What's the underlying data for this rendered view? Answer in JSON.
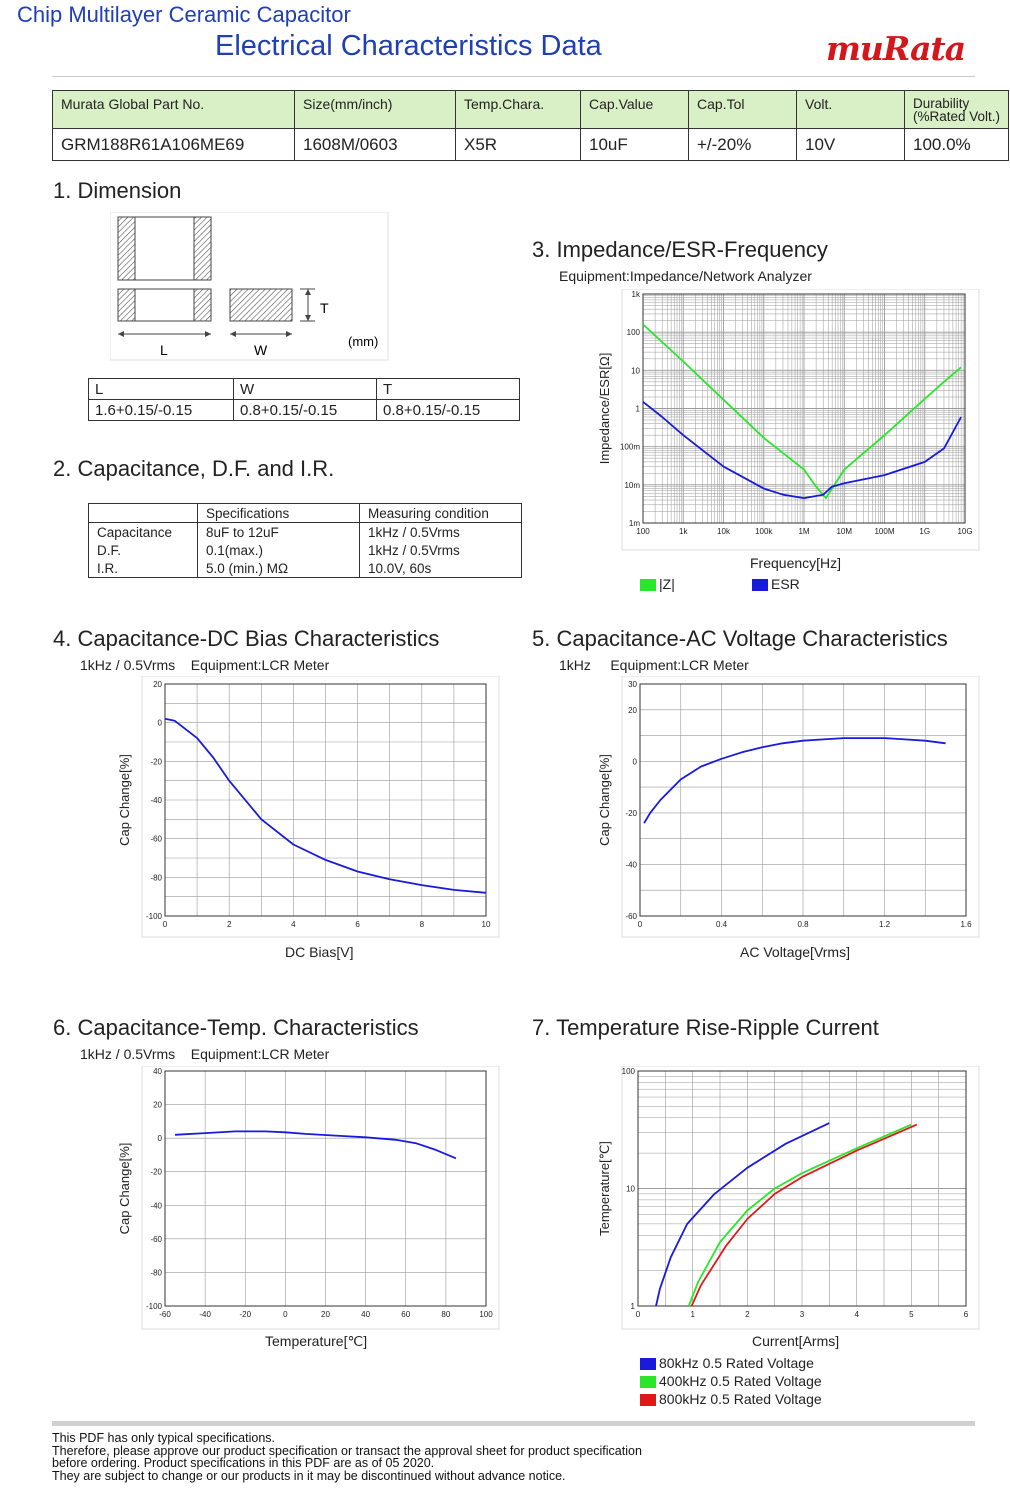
{
  "header": {
    "subtitle": "Chip Multilayer Ceramic Capacitor",
    "title": "Electrical Characteristics Data",
    "logo": "muRata"
  },
  "part_table": {
    "headers": [
      "Murata Global Part No.",
      "Size(mm/inch)",
      "Temp.Chara.",
      "Cap.Value",
      "Cap.Tol",
      "Volt.",
      "Durability\n(%Rated Volt.)"
    ],
    "values": [
      "GRM188R61A106ME69",
      "1608M/0603",
      "X5R",
      "10uF",
      "+/-20%",
      "10V",
      "100.0%"
    ]
  },
  "dimension": {
    "title": "1. Dimension",
    "labels": {
      "L": "L",
      "W": "W",
      "T": "T",
      "unit": "(mm)"
    },
    "table": {
      "headers": [
        "L",
        "W",
        "T"
      ],
      "values": [
        "1.6+0.15/-0.15",
        "0.8+0.15/-0.15",
        "0.8+0.15/-0.15"
      ]
    }
  },
  "capacitance": {
    "title": "2. Capacitance, D.F. and I.R.",
    "headers": [
      "",
      "Specifications",
      "Measuring condition"
    ],
    "rows": [
      [
        "Capacitance",
        "8uF to 12uF",
        "1kHz / 0.5Vrms"
      ],
      [
        "D.F.",
        "0.1(max.)",
        "1kHz / 0.5Vrms"
      ],
      [
        "I.R.",
        "5.0 (min.) MΩ",
        "10.0V, 60s"
      ]
    ]
  },
  "impedance": {
    "title": "3. Impedance/ESR-Frequency",
    "subtitle": "Equipment:Impedance/Network Analyzer",
    "ylabel": "Impedance/ESR[Ω]",
    "xlabel": "Frequency[Hz]",
    "xticks": [
      "100",
      "1k",
      "10k",
      "100k",
      "1M",
      "10M",
      "100M",
      "1G",
      "10G"
    ],
    "yticks": [
      "1k",
      "100",
      "10",
      "1",
      "100m",
      "10m",
      "1m"
    ],
    "legend": [
      "|Z|",
      "ESR"
    ]
  },
  "dc_bias": {
    "title": "4. Capacitance-DC Bias Characteristics",
    "subtitle": "1kHz / 0.5Vrms    Equipment:LCR Meter",
    "ylabel": "Cap Change[%]",
    "xlabel": "DC Bias[V]",
    "xticks": [
      "0",
      "2",
      "4",
      "6",
      "8",
      "10"
    ],
    "yticks": [
      "20",
      "0",
      "-20",
      "-40",
      "-60",
      "-80",
      "-100"
    ]
  },
  "ac_voltage": {
    "title": "5. Capacitance-AC Voltage Characteristics",
    "subtitle": "1kHz     Equipment:LCR Meter",
    "ylabel": "Cap Change[%]",
    "xlabel": "AC Voltage[Vrms]",
    "xticks": [
      "0",
      "0.4",
      "0.8",
      "1.2",
      "1.6"
    ],
    "yticks": [
      "30",
      "20",
      "0",
      "-20",
      "-40",
      "-60"
    ]
  },
  "temp": {
    "title": "6. Capacitance-Temp. Characteristics",
    "subtitle": "1kHz / 0.5Vrms    Equipment:LCR Meter",
    "ylabel": "Cap Change[%]",
    "xlabel": "Temperature[℃]",
    "xticks": [
      "-60",
      "-40",
      "-20",
      "0",
      "20",
      "40",
      "60",
      "80",
      "100"
    ],
    "yticks": [
      "40",
      "20",
      "0",
      "-20",
      "-40",
      "-60",
      "-80",
      "-100"
    ]
  },
  "ripple": {
    "title": "7. Temperature Rise-Ripple Current",
    "ylabel": "Temperature[℃]",
    "xlabel": "Current[Arms]",
    "xticks": [
      "0",
      "1",
      "2",
      "3",
      "4",
      "5",
      "6"
    ],
    "yticks": [
      "100",
      "10",
      "1"
    ],
    "legend": [
      "80kHz 0.5 Rated Voltage",
      "400kHz 0.5 Rated Voltage",
      "800kHz 0.5 Rated Voltage"
    ]
  },
  "colors": {
    "blue": "#1a1adc",
    "green": "#29e629",
    "red": "#e01818",
    "header_blue": "#1f3fb4",
    "logo_red": "#d4161d"
  },
  "chart_data": [
    {
      "type": "line",
      "title": "3. Impedance/ESR-Frequency",
      "xlabel": "Frequency[Hz]",
      "ylabel": "Impedance/ESR[Ω]",
      "xscale": "log",
      "yscale": "log",
      "xlim": [
        100,
        10000000000
      ],
      "ylim": [
        0.001,
        1000
      ],
      "series": [
        {
          "name": "|Z|",
          "x": [
            100,
            1000,
            10000,
            100000,
            1000000,
            2000000,
            3500000,
            5000000,
            10000000,
            100000000,
            1000000000,
            3000000000,
            8000000000
          ],
          "y": [
            160,
            17,
            1.7,
            0.17,
            0.025,
            0.009,
            0.0045,
            0.008,
            0.025,
            0.2,
            1.8,
            5,
            12
          ]
        },
        {
          "name": "ESR",
          "x": [
            100,
            300,
            1000,
            10000,
            100000,
            300000,
            1000000,
            3000000,
            5000000,
            10000000,
            100000000,
            1000000000,
            3000000000,
            8000000000
          ],
          "y": [
            1.5,
            0.6,
            0.2,
            0.03,
            0.008,
            0.0055,
            0.0045,
            0.0055,
            0.009,
            0.011,
            0.018,
            0.04,
            0.09,
            0.6
          ]
        }
      ]
    },
    {
      "type": "line",
      "title": "4. Capacitance-DC Bias Characteristics",
      "xlabel": "DC Bias[V]",
      "ylabel": "Cap Change[%]",
      "xlim": [
        0,
        10
      ],
      "ylim": [
        -100,
        20
      ],
      "series": [
        {
          "name": "",
          "x": [
            0,
            0.3,
            1,
            1.5,
            2,
            3,
            4,
            5,
            6,
            7,
            8,
            9,
            10
          ],
          "y": [
            2,
            1,
            -8,
            -18,
            -30,
            -50,
            -63,
            -71,
            -77,
            -81,
            -84,
            -86.5,
            -88
          ]
        }
      ]
    },
    {
      "type": "line",
      "title": "5. Capacitance-AC Voltage Characteristics",
      "xlabel": "AC Voltage[Vrms]",
      "ylabel": "Cap Change[%]",
      "xlim": [
        0,
        1.6
      ],
      "ylim": [
        -60,
        30
      ],
      "series": [
        {
          "name": "",
          "x": [
            0.02,
            0.05,
            0.1,
            0.2,
            0.3,
            0.4,
            0.5,
            0.6,
            0.7,
            0.8,
            0.9,
            1.0,
            1.1,
            1.2,
            1.3,
            1.4,
            1.5
          ],
          "y": [
            -24,
            -20,
            -15,
            -7,
            -2,
            1,
            3.5,
            5.5,
            7,
            8,
            8.5,
            9,
            9,
            9,
            8.5,
            8,
            7
          ]
        }
      ]
    },
    {
      "type": "line",
      "title": "6. Capacitance-Temp. Characteristics",
      "xlabel": "Temperature[℃]",
      "ylabel": "Cap Change[%]",
      "xlim": [
        -60,
        100
      ],
      "ylim": [
        -100,
        40
      ],
      "series": [
        {
          "name": "",
          "x": [
            -55,
            -40,
            -25,
            -10,
            0,
            10,
            25,
            40,
            55,
            65,
            75,
            85
          ],
          "y": [
            2,
            3,
            4,
            4,
            3.5,
            2.5,
            1.5,
            0.5,
            -1,
            -3,
            -7,
            -12
          ]
        }
      ]
    },
    {
      "type": "line",
      "title": "7. Temperature Rise-Ripple Current",
      "xlabel": "Current[Arms]",
      "ylabel": "Temperature[℃]",
      "yscale": "log",
      "xlim": [
        0,
        6
      ],
      "ylim": [
        1,
        100
      ],
      "series": [
        {
          "name": "80kHz 0.5 Rated Voltage",
          "x": [
            0.33,
            0.4,
            0.6,
            0.9,
            1.4,
            2.0,
            2.7,
            3.5
          ],
          "y": [
            1,
            1.4,
            2.6,
            5,
            9,
            15,
            24,
            36
          ]
        },
        {
          "name": "400kHz 0.5 Rated Voltage",
          "x": [
            0.93,
            1.1,
            1.5,
            2.0,
            2.5,
            3.0,
            4.0,
            5.0
          ],
          "y": [
            1,
            1.6,
            3.5,
            6.5,
            10,
            13.5,
            22,
            35
          ]
        },
        {
          "name": "800kHz 0.5 Rated Voltage",
          "x": [
            0.98,
            1.15,
            1.6,
            2.0,
            2.5,
            3.0,
            4.0,
            5.1
          ],
          "y": [
            1,
            1.5,
            3.2,
            5.5,
            9,
            12.5,
            21,
            35
          ]
        }
      ]
    }
  ],
  "footer": [
    "This PDF has only typical specifications.",
    "Therefore, please approve our product specification or transact the approval sheet for product specification",
    "before ordering. Product specifications in this PDF are as of 05 2020.",
    "They are subject to change or our products in it may be discontinued without advance notice."
  ]
}
